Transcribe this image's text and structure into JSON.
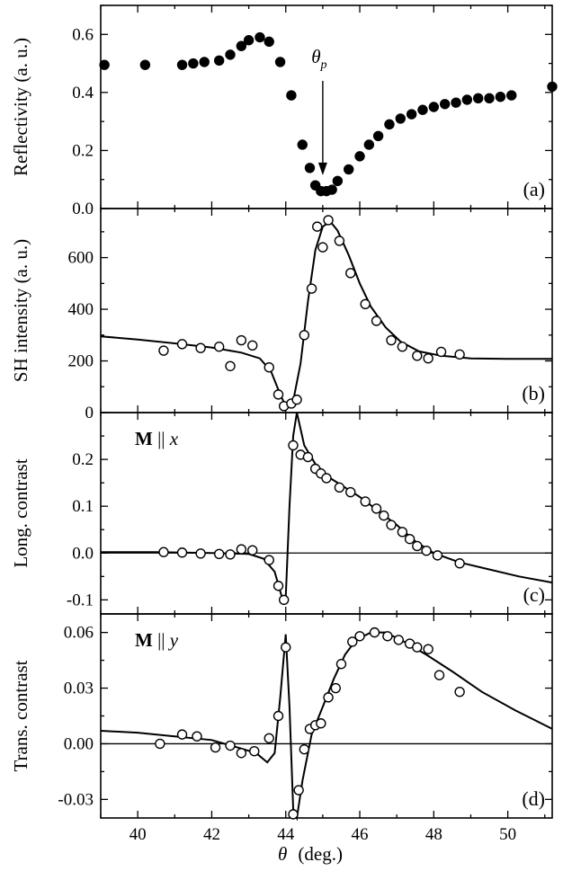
{
  "figure": {
    "x_axis_label": {
      "symbol": "θ",
      "unit": "(deg.)"
    },
    "x_ticks": [
      40,
      42,
      44,
      46,
      48,
      50
    ],
    "x_range": [
      39,
      51.2
    ]
  },
  "chart_data": [
    {
      "type": "scatter",
      "panel_label": "(a)",
      "ylabel": "Reflectivity (a. u.)",
      "ylim": [
        0,
        0.7
      ],
      "yticks": [
        {
          "v": 0.0,
          "t": "0.0"
        },
        {
          "v": 0.2,
          "t": "0.2"
        },
        {
          "v": 0.4,
          "t": "0.4"
        },
        {
          "v": 0.6,
          "t": "0.6"
        }
      ],
      "annotation": {
        "text": "θ",
        "subscript": "p",
        "arrow_x": 45.0,
        "arrow_from": 0.44,
        "arrow_to": 0.115
      },
      "series": [
        {
          "marker": "filled",
          "points": [
            [
              39.1,
              0.495
            ],
            [
              40.2,
              0.495
            ],
            [
              41.2,
              0.495
            ],
            [
              41.5,
              0.5
            ],
            [
              41.8,
              0.505
            ],
            [
              42.2,
              0.51
            ],
            [
              42.5,
              0.53
            ],
            [
              42.8,
              0.56
            ],
            [
              43.0,
              0.58
            ],
            [
              43.3,
              0.59
            ],
            [
              43.55,
              0.575
            ],
            [
              43.85,
              0.505
            ],
            [
              44.15,
              0.39
            ],
            [
              44.45,
              0.22
            ],
            [
              44.65,
              0.14
            ],
            [
              44.8,
              0.08
            ],
            [
              44.95,
              0.06
            ],
            [
              45.1,
              0.06
            ],
            [
              45.25,
              0.065
            ],
            [
              45.4,
              0.095
            ],
            [
              45.7,
              0.135
            ],
            [
              46.0,
              0.18
            ],
            [
              46.25,
              0.22
            ],
            [
              46.5,
              0.25
            ],
            [
              46.8,
              0.29
            ],
            [
              47.1,
              0.31
            ],
            [
              47.4,
              0.325
            ],
            [
              47.7,
              0.34
            ],
            [
              48.0,
              0.35
            ],
            [
              48.3,
              0.36
            ],
            [
              48.6,
              0.365
            ],
            [
              48.9,
              0.375
            ],
            [
              49.2,
              0.38
            ],
            [
              49.5,
              0.38
            ],
            [
              49.8,
              0.385
            ],
            [
              50.1,
              0.39
            ],
            [
              51.2,
              0.42
            ]
          ]
        }
      ]
    },
    {
      "type": "scatter",
      "panel_label": "(b)",
      "ylabel": "SH intensity (a. u.)",
      "ylim": [
        0,
        790
      ],
      "yticks": [
        {
          "v": 0,
          "t": "0"
        },
        {
          "v": 200,
          "t": "200"
        },
        {
          "v": 400,
          "t": "400"
        },
        {
          "v": 600,
          "t": "600"
        }
      ],
      "series": [
        {
          "marker": "open",
          "points": [
            [
              40.7,
              240
            ],
            [
              41.2,
              265
            ],
            [
              41.7,
              250
            ],
            [
              42.2,
              255
            ],
            [
              42.5,
              180
            ],
            [
              42.8,
              280
            ],
            [
              43.1,
              260
            ],
            [
              43.55,
              175
            ],
            [
              43.8,
              70
            ],
            [
              43.95,
              25
            ],
            [
              44.15,
              35
            ],
            [
              44.3,
              50
            ],
            [
              44.5,
              300
            ],
            [
              44.7,
              480
            ],
            [
              44.85,
              720
            ],
            [
              45.0,
              640
            ],
            [
              45.15,
              745
            ],
            [
              45.45,
              665
            ],
            [
              45.75,
              540
            ],
            [
              46.15,
              420
            ],
            [
              46.45,
              355
            ],
            [
              46.85,
              280
            ],
            [
              47.15,
              255
            ],
            [
              47.55,
              220
            ],
            [
              47.85,
              210
            ],
            [
              48.2,
              235
            ],
            [
              48.7,
              225
            ]
          ]
        }
      ],
      "fit": [
        [
          39.0,
          295
        ],
        [
          40.0,
          283
        ],
        [
          41.0,
          268
        ],
        [
          42.0,
          252
        ],
        [
          42.8,
          232
        ],
        [
          43.3,
          210
        ],
        [
          43.6,
          160
        ],
        [
          43.85,
          70
        ],
        [
          44.0,
          25
        ],
        [
          44.2,
          45
        ],
        [
          44.4,
          190
        ],
        [
          44.6,
          430
        ],
        [
          44.8,
          630
        ],
        [
          45.0,
          720
        ],
        [
          45.2,
          740
        ],
        [
          45.4,
          705
        ],
        [
          45.7,
          610
        ],
        [
          46.0,
          500
        ],
        [
          46.3,
          410
        ],
        [
          46.7,
          330
        ],
        [
          47.1,
          275
        ],
        [
          47.6,
          237
        ],
        [
          48.2,
          220
        ],
        [
          49.0,
          210
        ],
        [
          50.0,
          208
        ],
        [
          51.2,
          208
        ]
      ]
    },
    {
      "type": "scatter",
      "panel_label": "(c)",
      "ylabel": "Long. contrast",
      "ylim": [
        -0.13,
        0.3
      ],
      "yticks": [
        {
          "v": -0.1,
          "t": "-0.1"
        },
        {
          "v": 0.0,
          "t": "0.0"
        },
        {
          "v": 0.1,
          "t": "0.1"
        },
        {
          "v": 0.2,
          "t": "0.2"
        }
      ],
      "annotation": {
        "bold": "M",
        "mid": " || ",
        "italic": "x"
      },
      "zero_line": true,
      "series": [
        {
          "marker": "open",
          "points": [
            [
              40.7,
              0.002
            ],
            [
              41.2,
              0.001
            ],
            [
              41.7,
              -0.001
            ],
            [
              42.2,
              -0.002
            ],
            [
              42.5,
              -0.003
            ],
            [
              42.8,
              0.008
            ],
            [
              43.1,
              0.006
            ],
            [
              43.55,
              -0.015
            ],
            [
              43.8,
              -0.07
            ],
            [
              43.95,
              -0.1
            ],
            [
              44.2,
              0.23
            ],
            [
              44.4,
              0.21
            ],
            [
              44.6,
              0.205
            ],
            [
              44.8,
              0.18
            ],
            [
              44.95,
              0.17
            ],
            [
              45.1,
              0.16
            ],
            [
              45.45,
              0.14
            ],
            [
              45.75,
              0.13
            ],
            [
              46.15,
              0.11
            ],
            [
              46.45,
              0.095
            ],
            [
              46.65,
              0.08
            ],
            [
              46.85,
              0.06
            ],
            [
              47.15,
              0.045
            ],
            [
              47.35,
              0.03
            ],
            [
              47.55,
              0.015
            ],
            [
              47.8,
              0.005
            ],
            [
              48.1,
              -0.005
            ],
            [
              48.7,
              -0.022
            ]
          ]
        }
      ],
      "fit": [
        [
          39.0,
          0.002
        ],
        [
          40.5,
          0.002
        ],
        [
          42.0,
          0.0
        ],
        [
          43.0,
          -0.002
        ],
        [
          43.4,
          -0.012
        ],
        [
          43.7,
          -0.04
        ],
        [
          43.9,
          -0.095
        ],
        [
          44.0,
          -0.095
        ],
        [
          44.1,
          0.1
        ],
        [
          44.2,
          0.25
        ],
        [
          44.3,
          0.3
        ],
        [
          44.5,
          0.23
        ],
        [
          44.8,
          0.19
        ],
        [
          45.2,
          0.16
        ],
        [
          45.6,
          0.14
        ],
        [
          46.0,
          0.12
        ],
        [
          46.5,
          0.09
        ],
        [
          47.0,
          0.06
        ],
        [
          47.5,
          0.025
        ],
        [
          48.0,
          0.0
        ],
        [
          48.7,
          -0.02
        ],
        [
          49.5,
          -0.035
        ],
        [
          50.3,
          -0.05
        ],
        [
          51.2,
          -0.063
        ]
      ]
    },
    {
      "type": "scatter",
      "panel_label": "(d)",
      "ylabel": "Trans. contrast",
      "ylim": [
        -0.04,
        0.07
      ],
      "yticks": [
        {
          "v": -0.03,
          "t": "-0.03"
        },
        {
          "v": 0.0,
          "t": "0.00"
        },
        {
          "v": 0.03,
          "t": "0.03"
        },
        {
          "v": 0.06,
          "t": "0.06"
        }
      ],
      "annotation": {
        "bold": "M",
        "mid": " || ",
        "italic": "y"
      },
      "zero_line": true,
      "series": [
        {
          "marker": "open",
          "points": [
            [
              40.6,
              0.0
            ],
            [
              41.2,
              0.005
            ],
            [
              41.6,
              0.004
            ],
            [
              42.1,
              -0.002
            ],
            [
              42.5,
              -0.001
            ],
            [
              42.8,
              -0.005
            ],
            [
              43.15,
              -0.004
            ],
            [
              43.55,
              0.003
            ],
            [
              43.8,
              0.015
            ],
            [
              44.0,
              0.052
            ],
            [
              44.2,
              -0.038
            ],
            [
              44.35,
              -0.025
            ],
            [
              44.5,
              -0.003
            ],
            [
              44.65,
              0.008
            ],
            [
              44.8,
              0.01
            ],
            [
              44.95,
              0.011
            ],
            [
              45.15,
              0.025
            ],
            [
              45.35,
              0.03
            ],
            [
              45.5,
              0.043
            ],
            [
              45.8,
              0.055
            ],
            [
              46.0,
              0.058
            ],
            [
              46.4,
              0.06
            ],
            [
              46.75,
              0.058
            ],
            [
              47.05,
              0.056
            ],
            [
              47.35,
              0.054
            ],
            [
              47.55,
              0.052
            ],
            [
              47.85,
              0.051
            ],
            [
              48.15,
              0.037
            ],
            [
              48.7,
              0.028
            ]
          ]
        }
      ],
      "fit": [
        [
          39.0,
          0.007
        ],
        [
          40.0,
          0.006
        ],
        [
          41.0,
          0.004
        ],
        [
          42.0,
          0.002
        ],
        [
          42.7,
          -0.002
        ],
        [
          43.2,
          -0.005
        ],
        [
          43.5,
          -0.01
        ],
        [
          43.7,
          -0.005
        ],
        [
          43.85,
          0.025
        ],
        [
          44.0,
          0.059
        ],
        [
          44.1,
          0.02
        ],
        [
          44.2,
          -0.035
        ],
        [
          44.3,
          -0.04
        ],
        [
          44.45,
          -0.02
        ],
        [
          44.7,
          0.005
        ],
        [
          45.0,
          0.02
        ],
        [
          45.3,
          0.035
        ],
        [
          45.6,
          0.048
        ],
        [
          45.9,
          0.056
        ],
        [
          46.3,
          0.06
        ],
        [
          46.7,
          0.06
        ],
        [
          47.2,
          0.055
        ],
        [
          47.8,
          0.048
        ],
        [
          48.5,
          0.039
        ],
        [
          49.3,
          0.028
        ],
        [
          50.2,
          0.018
        ],
        [
          51.2,
          0.008
        ]
      ]
    }
  ]
}
